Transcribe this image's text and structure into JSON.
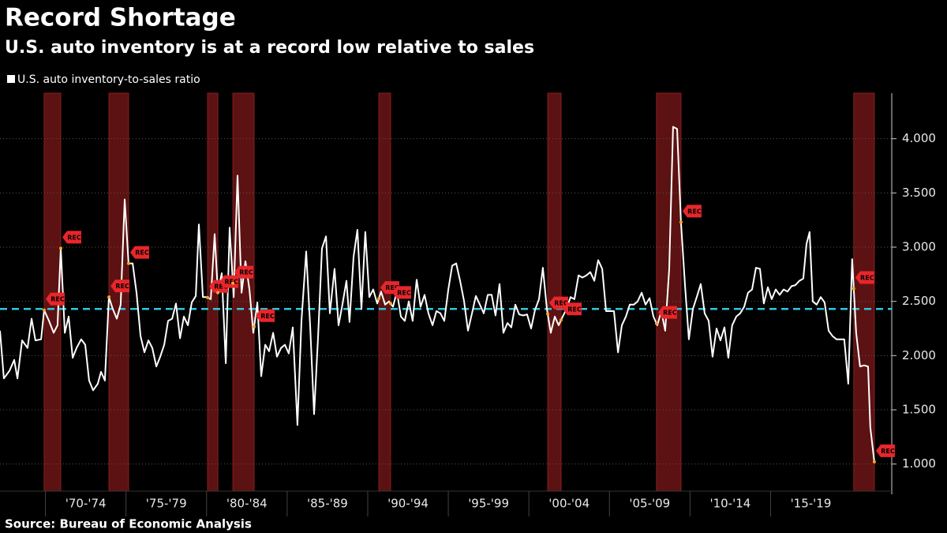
{
  "chart_data": {
    "type": "line",
    "title": "Record Shortage",
    "subtitle": "U.S. auto inventory is at a record low relative to sales",
    "source": "Source: Bureau of Economic Analysis",
    "recession_label": "REC",
    "recessions": [
      [
        1969.92,
        1970.95
      ],
      [
        1973.94,
        1975.16
      ],
      [
        1980.06,
        1980.7
      ],
      [
        1981.63,
        1982.95
      ],
      [
        1990.69,
        1991.42
      ],
      [
        2001.17,
        2002.0
      ],
      [
        2007.92,
        2009.44
      ],
      [
        2020.16,
        2021.44
      ]
    ],
    "recession_color": "#5c1212",
    "average": 2.43,
    "average_color": "#2ec5e0",
    "xlim": [
      1967.18,
      2022.52
    ],
    "ylim": [
      0.75,
      4.42
    ],
    "xticks": [
      {
        "value": 1970,
        "label": "'70-'74"
      },
      {
        "value": 1975,
        "label": "'75-'79"
      },
      {
        "value": 1980,
        "label": "'80-'84"
      },
      {
        "value": 1985,
        "label": "'85-'89"
      },
      {
        "value": 1990,
        "label": "'90-'94"
      },
      {
        "value": 1995,
        "label": "'95-'99"
      },
      {
        "value": 2000,
        "label": "'00-'04"
      },
      {
        "value": 2005,
        "label": "'05-'09"
      },
      {
        "value": 2010,
        "label": "'10-'14"
      },
      {
        "value": 2015,
        "label": "'15-'19"
      }
    ],
    "yticks": [
      {
        "value": 1,
        "label": "1.000"
      },
      {
        "value": 1.5,
        "label": "1.500"
      },
      {
        "value": 2,
        "label": "2.000"
      },
      {
        "value": 2.5,
        "label": "2.500"
      },
      {
        "value": 3,
        "label": "3.000"
      },
      {
        "value": 3.5,
        "label": "3.500"
      },
      {
        "value": 4,
        "label": "4.000"
      }
    ],
    "grid": true,
    "x": [
      1967.18,
      1967.42,
      1967.77,
      1968.06,
      1968.26,
      1968.55,
      1968.89,
      1969.14,
      1969.38,
      1969.73,
      1969.92,
      1970.22,
      1970.51,
      1970.75,
      1970.95,
      1971.2,
      1971.44,
      1971.69,
      1971.93,
      1972.22,
      1972.47,
      1972.71,
      1972.96,
      1973.25,
      1973.45,
      1973.69,
      1973.94,
      1974.18,
      1974.43,
      1974.67,
      1974.92,
      1975.16,
      1975.41,
      1975.65,
      1975.9,
      1976.14,
      1976.39,
      1976.63,
      1976.88,
      1977.12,
      1977.37,
      1977.61,
      1977.86,
      1978.1,
      1978.35,
      1978.59,
      1978.84,
      1979.08,
      1979.33,
      1979.52,
      1979.77,
      1980.01,
      1980.26,
      1980.5,
      1980.7,
      1980.94,
      1981.19,
      1981.43,
      1981.68,
      1981.92,
      1982.17,
      1982.41,
      1982.66,
      1982.9,
      1983.15,
      1983.39,
      1983.64,
      1983.88,
      1984.13,
      1984.37,
      1984.62,
      1984.86,
      1985.1,
      1985.35,
      1985.64,
      1985.89,
      1986.18,
      1986.43,
      1986.67,
      1986.92,
      1987.16,
      1987.41,
      1987.65,
      1987.94,
      1988.19,
      1988.43,
      1988.68,
      1988.87,
      1989.12,
      1989.36,
      1989.61,
      1989.85,
      1990.1,
      1990.34,
      1990.59,
      1990.83,
      1991.08,
      1991.32,
      1991.57,
      1991.81,
      1992.06,
      1992.3,
      1992.55,
      1992.79,
      1993.04,
      1993.28,
      1993.53,
      1993.77,
      1994.02,
      1994.26,
      1994.51,
      1994.75,
      1995.0,
      1995.24,
      1995.49,
      1995.73,
      1995.98,
      1996.22,
      1996.47,
      1996.71,
      1996.96,
      1997.2,
      1997.45,
      1997.69,
      1997.93,
      1998.18,
      1998.42,
      1998.67,
      1998.91,
      1999.16,
      1999.4,
      1999.65,
      1999.89,
      2000.14,
      2000.38,
      2000.63,
      2000.87,
      2001.12,
      2001.36,
      2001.61,
      2001.85,
      2002.1,
      2002.34,
      2002.59,
      2002.83,
      2003.08,
      2003.32,
      2003.57,
      2003.81,
      2004.06,
      2004.3,
      2004.55,
      2004.79,
      2005.04,
      2005.28,
      2005.53,
      2005.77,
      2006.02,
      2006.26,
      2006.51,
      2006.75,
      2007.0,
      2007.24,
      2007.49,
      2007.73,
      2007.97,
      2008.22,
      2008.46,
      2008.71,
      2008.95,
      2009.2,
      2009.44,
      2009.69,
      2009.93,
      2010.18,
      2010.42,
      2010.67,
      2010.91,
      2011.16,
      2011.4,
      2011.65,
      2011.89,
      2012.14,
      2012.38,
      2012.62,
      2012.87,
      2013.11,
      2013.36,
      2013.6,
      2013.85,
      2014.09,
      2014.34,
      2014.58,
      2014.83,
      2015.07,
      2015.32,
      2015.56,
      2015.81,
      2016.05,
      2016.3,
      2016.54,
      2016.79,
      2017.03,
      2017.23,
      2017.42,
      2017.62,
      2017.86,
      2018.11,
      2018.35,
      2018.6,
      2018.84,
      2019.09,
      2019.33,
      2019.57,
      2019.82,
      2020.06,
      2020.31,
      2020.55,
      2020.8,
      2021.05,
      2021.19,
      2021.44
    ],
    "series": [
      {
        "name": "U.S. auto inventory-to-sales ratio",
        "color": "#ffffff",
        "values": [
          2.23,
          1.79,
          1.86,
          1.96,
          1.79,
          2.14,
          2.07,
          2.34,
          2.14,
          2.15,
          2.42,
          2.32,
          2.21,
          2.28,
          2.99,
          2.21,
          2.36,
          1.98,
          2.07,
          2.15,
          2.1,
          1.77,
          1.68,
          1.74,
          1.85,
          1.77,
          2.54,
          2.43,
          2.34,
          2.47,
          3.44,
          2.85,
          2.85,
          2.58,
          2.18,
          2.03,
          2.14,
          2.07,
          1.9,
          1.99,
          2.1,
          2.32,
          2.34,
          2.48,
          2.16,
          2.36,
          2.28,
          2.49,
          2.55,
          3.21,
          2.54,
          2.54,
          2.52,
          3.12,
          2.58,
          2.76,
          1.93,
          3.18,
          2.54,
          3.66,
          2.58,
          2.87,
          2.61,
          2.21,
          2.49,
          1.81,
          2.1,
          2.04,
          2.21,
          1.99,
          2.07,
          2.1,
          2.02,
          2.26,
          1.36,
          2.32,
          2.96,
          2.26,
          1.46,
          2.18,
          2.99,
          3.1,
          2.39,
          2.8,
          2.28,
          2.47,
          2.69,
          2.31,
          2.91,
          3.16,
          2.43,
          3.14,
          2.54,
          2.61,
          2.48,
          2.59,
          2.47,
          2.5,
          2.45,
          2.59,
          2.36,
          2.32,
          2.5,
          2.32,
          2.7,
          2.45,
          2.56,
          2.39,
          2.28,
          2.41,
          2.39,
          2.32,
          2.61,
          2.83,
          2.85,
          2.69,
          2.5,
          2.23,
          2.39,
          2.55,
          2.47,
          2.39,
          2.56,
          2.56,
          2.37,
          2.66,
          2.21,
          2.3,
          2.26,
          2.47,
          2.38,
          2.37,
          2.38,
          2.25,
          2.42,
          2.52,
          2.81,
          2.43,
          2.21,
          2.36,
          2.28,
          2.36,
          2.43,
          2.54,
          2.52,
          2.74,
          2.72,
          2.74,
          2.77,
          2.69,
          2.88,
          2.8,
          2.41,
          2.41,
          2.41,
          2.03,
          2.28,
          2.36,
          2.47,
          2.47,
          2.5,
          2.58,
          2.47,
          2.53,
          2.36,
          2.28,
          2.41,
          2.23,
          2.8,
          4.11,
          4.09,
          3.23,
          2.65,
          2.15,
          2.43,
          2.54,
          2.66,
          2.39,
          2.32,
          1.99,
          2.25,
          2.14,
          2.26,
          1.98,
          2.28,
          2.36,
          2.39,
          2.45,
          2.58,
          2.61,
          2.81,
          2.8,
          2.48,
          2.63,
          2.52,
          2.61,
          2.56,
          2.61,
          2.59,
          2.64,
          2.65,
          2.69,
          2.71,
          3.03,
          3.14,
          2.5,
          2.47,
          2.54,
          2.49,
          2.23,
          2.18,
          2.15,
          2.15,
          2.15,
          1.74,
          2.89,
          2.21,
          1.9,
          1.91,
          1.9,
          1.34,
          1.02
        ]
      }
    ]
  }
}
